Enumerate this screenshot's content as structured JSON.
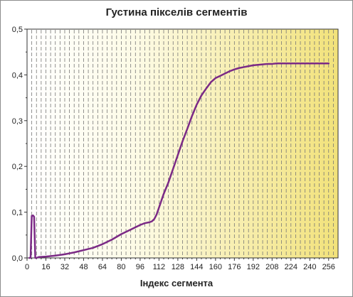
{
  "chart_data": {
    "type": "line",
    "title": "Густина пікселів сегментів",
    "xlabel": "Індекс сегмента",
    "ylabel": "",
    "xlim": [
      0,
      264
    ],
    "ylim": [
      0,
      0.5
    ],
    "x_ticks": [
      0,
      16,
      32,
      48,
      64,
      80,
      96,
      112,
      128,
      144,
      160,
      176,
      192,
      208,
      224,
      240,
      256
    ],
    "y_ticks": [
      0,
      0.1,
      0.2,
      0.3,
      0.4,
      0.5
    ],
    "y_tick_labels": [
      "0,0",
      "0,1",
      "0,2",
      "0,3",
      "0,4",
      "0,5"
    ],
    "grid": "vertical dashed",
    "background": "white-to-yellow horizontal gradient",
    "series": [
      {
        "color": "#7b2a86",
        "x": [
          2,
          3,
          4,
          5,
          6,
          7,
          8,
          9,
          10,
          16,
          24,
          32,
          40,
          48,
          56,
          64,
          72,
          80,
          88,
          96,
          100,
          104,
          106,
          108,
          110,
          112,
          116,
          120,
          124,
          128,
          132,
          136,
          140,
          144,
          148,
          152,
          156,
          160,
          164,
          168,
          172,
          176,
          180,
          184,
          188,
          192,
          196,
          200,
          204,
          208,
          212,
          216,
          224,
          232,
          240,
          248,
          256
        ],
        "y": [
          0.0,
          0.0,
          0.092,
          0.093,
          0.09,
          0.0,
          0.0,
          0.001,
          0.002,
          0.003,
          0.005,
          0.008,
          0.012,
          0.017,
          0.022,
          0.03,
          0.04,
          0.052,
          0.062,
          0.072,
          0.076,
          0.078,
          0.08,
          0.085,
          0.095,
          0.11,
          0.14,
          0.165,
          0.195,
          0.225,
          0.255,
          0.282,
          0.31,
          0.335,
          0.355,
          0.37,
          0.384,
          0.393,
          0.398,
          0.403,
          0.408,
          0.412,
          0.415,
          0.417,
          0.419,
          0.421,
          0.422,
          0.423,
          0.424,
          0.424,
          0.425,
          0.425,
          0.425,
          0.425,
          0.425,
          0.425,
          0.425
        ]
      }
    ]
  }
}
